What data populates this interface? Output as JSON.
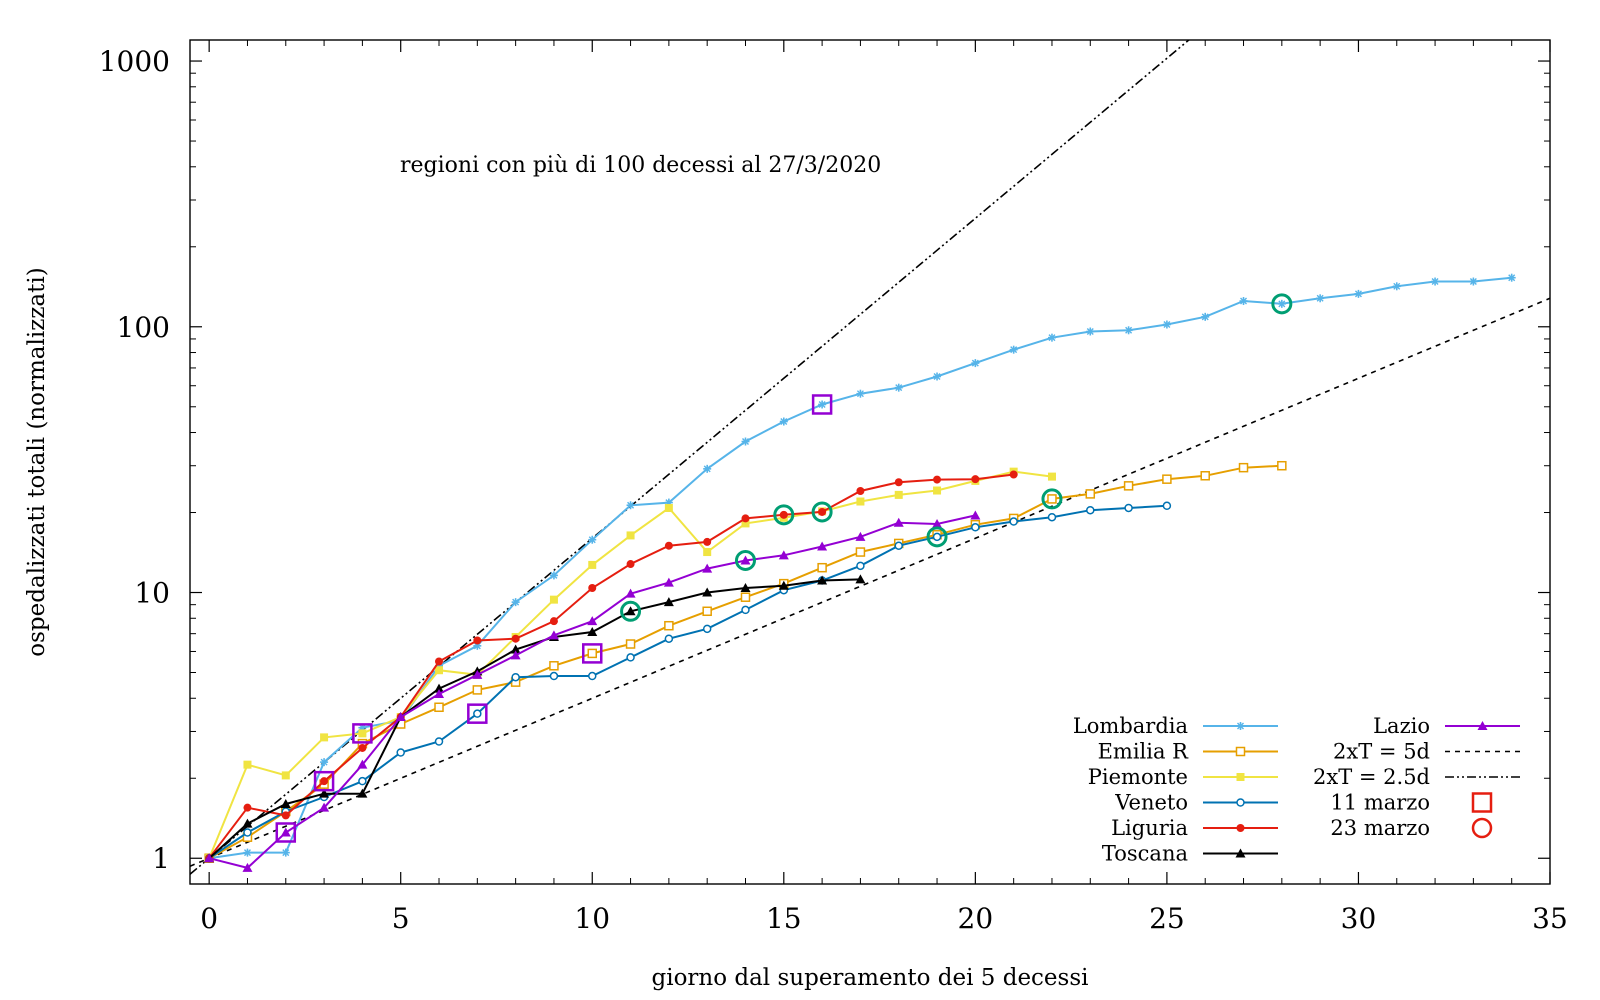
{
  "chart_data": {
    "type": "line",
    "annotation": "regioni con più di 100 decessi al 27/3/2020",
    "xlabel": "giorno dal superamento dei 5 decessi",
    "ylabel": "ospedalizzati totali (normalizzati)",
    "xlim": [
      -0.5,
      35
    ],
    "ylim": [
      0.8,
      1200
    ],
    "yscale": "log",
    "xticks": [
      0,
      5,
      10,
      15,
      20,
      25,
      30,
      35
    ],
    "xtick_labels": [
      "0",
      "5",
      "10",
      "15",
      "20",
      "25",
      "30",
      "35"
    ],
    "yticks": [
      1,
      10,
      100,
      1000
    ],
    "ytick_labels": [
      "1",
      "10",
      "100",
      "1000"
    ],
    "grid": false,
    "legend_position": "bottom-right",
    "series": [
      {
        "name": "Lombardia",
        "color": "#56b4e9",
        "marker": "star",
        "x": [
          0,
          1,
          2,
          3,
          4,
          5,
          6,
          7,
          8,
          9,
          10,
          11,
          12,
          13,
          14,
          15,
          16,
          17,
          18,
          19,
          20,
          21,
          22,
          23,
          24,
          25,
          26,
          27,
          28,
          29,
          30,
          31,
          32,
          33,
          34
        ],
        "y": [
          1,
          1.05,
          1.05,
          2.3,
          3.1,
          3.3,
          5.3,
          6.3,
          9.2,
          11.6,
          15.8,
          21.3,
          21.8,
          29.2,
          37,
          44,
          51,
          56,
          59,
          65,
          73,
          82,
          91,
          96,
          97,
          102,
          109,
          125,
          122,
          128,
          133,
          142,
          148,
          148,
          153
        ]
      },
      {
        "name": "Emilia R",
        "color": "#e69f00",
        "marker": "open-square",
        "x": [
          0,
          1,
          2,
          3,
          4,
          5,
          6,
          7,
          8,
          9,
          10,
          11,
          12,
          13,
          14,
          15,
          16,
          17,
          18,
          19,
          20,
          21,
          22,
          23,
          24,
          25,
          26,
          27,
          28
        ],
        "y": [
          1,
          1.2,
          1.5,
          1.9,
          2.7,
          3.2,
          3.7,
          4.3,
          4.6,
          5.3,
          5.9,
          6.4,
          7.5,
          8.5,
          9.6,
          10.8,
          12.4,
          14.2,
          15.3,
          16.5,
          18,
          19,
          22.5,
          23.5,
          25.2,
          26.7,
          27.5,
          29.5,
          30
        ]
      },
      {
        "name": "Piemonte",
        "color": "#f0e442",
        "marker": "filled-square",
        "x": [
          0,
          1,
          2,
          3,
          4,
          5,
          6,
          7,
          8,
          9,
          10,
          11,
          12,
          13,
          14,
          15,
          16,
          17,
          18,
          19,
          20,
          21,
          22
        ],
        "y": [
          1,
          2.25,
          2.05,
          2.85,
          2.95,
          3.4,
          5.1,
          4.9,
          6.8,
          9.4,
          12.7,
          16.4,
          20.8,
          14.2,
          18.2,
          19.1,
          20.2,
          22,
          23.3,
          24.2,
          26.3,
          28.5,
          27.3
        ]
      },
      {
        "name": "Veneto",
        "color": "#0072b2",
        "marker": "open-circle",
        "x": [
          0,
          1,
          2,
          3,
          4,
          5,
          6,
          7,
          8,
          9,
          10,
          11,
          12,
          13,
          14,
          15,
          16,
          17,
          18,
          19,
          20,
          21,
          22,
          23,
          24,
          25
        ],
        "y": [
          1,
          1.25,
          1.5,
          1.7,
          1.95,
          2.5,
          2.75,
          3.5,
          4.8,
          4.85,
          4.85,
          5.7,
          6.7,
          7.3,
          8.6,
          10.2,
          11.1,
          12.6,
          15,
          16.2,
          17.6,
          18.5,
          19.2,
          20.4,
          20.8,
          21.2
        ]
      },
      {
        "name": "Liguria",
        "color": "#e51e10",
        "marker": "filled-circle",
        "x": [
          0,
          1,
          2,
          3,
          4,
          5,
          6,
          7,
          8,
          9,
          10,
          11,
          12,
          13,
          14,
          15,
          16,
          17,
          18,
          19,
          20,
          21
        ],
        "y": [
          1,
          1.55,
          1.45,
          1.95,
          2.6,
          3.4,
          5.5,
          6.6,
          6.7,
          7.8,
          10.4,
          12.8,
          15,
          15.5,
          19,
          19.6,
          20.1,
          24.1,
          26,
          26.6,
          26.7,
          27.8
        ]
      },
      {
        "name": "Toscana",
        "color": "#000000",
        "marker": "filled-triangle",
        "x": [
          0,
          1,
          2,
          3,
          4,
          5,
          6,
          7,
          8,
          9,
          10,
          11,
          12,
          13,
          14,
          15,
          16,
          17
        ],
        "y": [
          1,
          1.35,
          1.6,
          1.75,
          1.75,
          3.4,
          4.35,
          5.05,
          6.1,
          6.8,
          7.1,
          8.5,
          9.2,
          10,
          10.4,
          10.6,
          11.1,
          11.2
        ]
      },
      {
        "name": "Lazio",
        "color": "#9400d3",
        "marker": "filled-triangle",
        "x": [
          0,
          1,
          2,
          3,
          4,
          5,
          6,
          7,
          8,
          9,
          10,
          11,
          12,
          13,
          14,
          15,
          16,
          17,
          18,
          19,
          20
        ],
        "y": [
          1,
          0.92,
          1.25,
          1.55,
          2.25,
          3.4,
          4.15,
          4.9,
          5.8,
          6.9,
          7.8,
          9.9,
          10.9,
          12.3,
          13.2,
          13.8,
          14.9,
          16.2,
          18.3,
          18.1,
          19.5
        ]
      },
      {
        "name": "2xT = 5d",
        "color": "#000000",
        "dash": "dotted",
        "function": "2^(x/5)"
      },
      {
        "name": "2xT = 2.5d",
        "color": "#000000",
        "dash": "dash-dot",
        "function": "2^(x/2.5)"
      }
    ],
    "markers": [
      {
        "name": "11 marzo",
        "shape": "square",
        "color": "#9400d3",
        "points": [
          [
            2,
            1.25
          ],
          [
            3,
            1.95
          ],
          [
            4,
            2.95
          ],
          [
            7,
            3.5
          ],
          [
            10,
            5.9
          ],
          [
            16,
            51
          ]
        ]
      },
      {
        "name": "23 marzo",
        "shape": "circle",
        "color": "#009e73",
        "points": [
          [
            11,
            8.5
          ],
          [
            14,
            13.2
          ],
          [
            15,
            19.6
          ],
          [
            16,
            20.1
          ],
          [
            19,
            16.2
          ],
          [
            22,
            22.5
          ],
          [
            28,
            122
          ]
        ]
      }
    ],
    "legend_marker_color": "#e51e10"
  }
}
